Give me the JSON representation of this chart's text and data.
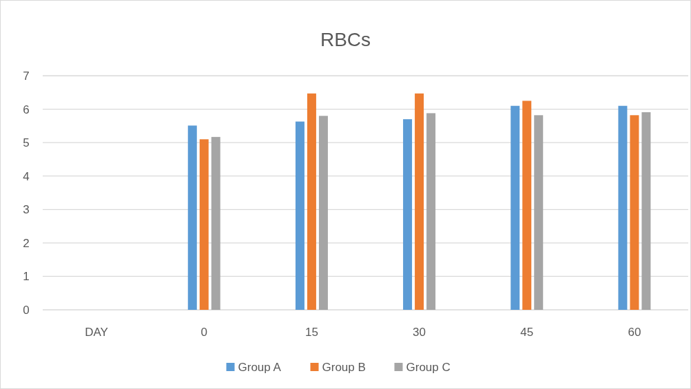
{
  "chart_data": {
    "type": "bar",
    "title": "RBCs",
    "categories": [
      "DAY",
      "0",
      "15",
      "30",
      "45",
      "60"
    ],
    "series": [
      {
        "name": "Group A",
        "color": "#5b9bd5",
        "values": [
          null,
          5.51,
          5.63,
          5.7,
          6.1,
          6.1
        ]
      },
      {
        "name": "Group B",
        "color": "#ed7d31",
        "values": [
          null,
          5.1,
          6.47,
          6.47,
          6.25,
          5.82
        ]
      },
      {
        "name": "Group C",
        "color": "#a5a5a5",
        "values": [
          null,
          5.17,
          5.8,
          5.88,
          5.82,
          5.91
        ]
      }
    ],
    "ylim": [
      0,
      7
    ],
    "yticks": [
      0,
      1,
      2,
      3,
      4,
      5,
      6,
      7
    ],
    "grid": "y",
    "legend": "bottom"
  }
}
